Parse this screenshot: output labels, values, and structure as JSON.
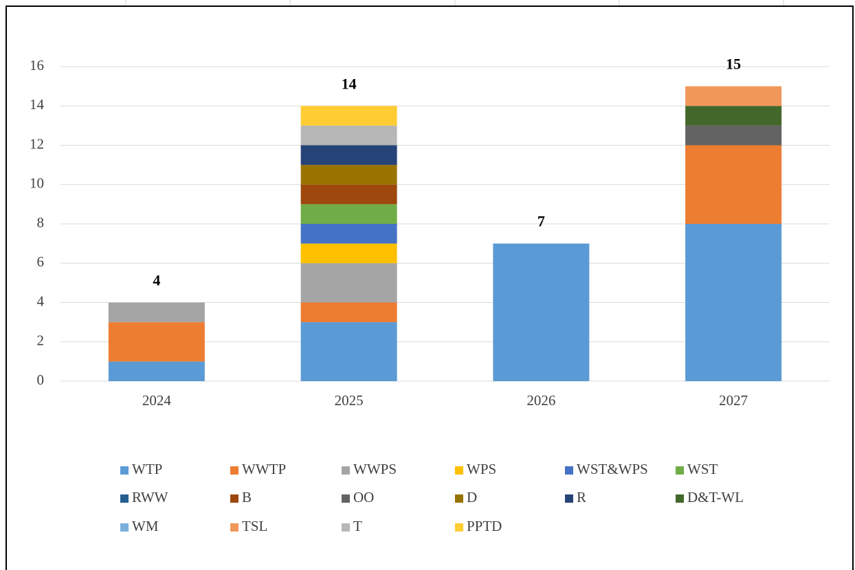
{
  "chart_data": {
    "type": "stacked_bar",
    "categories": [
      "2024",
      "2025",
      "2026",
      "2027"
    ],
    "series": [
      {
        "name": "WTP",
        "color": "#5b9bd5",
        "values": [
          1,
          3,
          7,
          8
        ]
      },
      {
        "name": "WWTP",
        "color": "#ed7d31",
        "values": [
          2,
          1,
          0,
          4
        ]
      },
      {
        "name": "WWPS",
        "color": "#a5a5a5",
        "values": [
          1,
          2,
          0,
          0
        ]
      },
      {
        "name": "WPS",
        "color": "#ffc000",
        "values": [
          0,
          1,
          0,
          0
        ]
      },
      {
        "name": "WST&WPS",
        "color": "#4472c4",
        "values": [
          0,
          1,
          0,
          0
        ]
      },
      {
        "name": "WST",
        "color": "#70ad47",
        "values": [
          0,
          1,
          0,
          0
        ]
      },
      {
        "name": "RWW",
        "color": "#255e91",
        "values": [
          0,
          0,
          0,
          0
        ]
      },
      {
        "name": "B",
        "color": "#9e480e",
        "values": [
          0,
          1,
          0,
          0
        ]
      },
      {
        "name": "OO",
        "color": "#636363",
        "values": [
          0,
          0,
          0,
          1
        ]
      },
      {
        "name": "D",
        "color": "#997300",
        "values": [
          0,
          1,
          0,
          0
        ]
      },
      {
        "name": "R",
        "color": "#264478",
        "values": [
          0,
          1,
          0,
          0
        ]
      },
      {
        "name": "D&T-WL",
        "color": "#43682b",
        "values": [
          0,
          0,
          0,
          1
        ]
      },
      {
        "name": "WM",
        "color": "#7cafdd",
        "values": [
          0,
          0,
          0,
          0
        ]
      },
      {
        "name": "TSL",
        "color": "#f1975a",
        "values": [
          0,
          0,
          0,
          1
        ]
      },
      {
        "name": "T",
        "color": "#b7b7b7",
        "values": [
          0,
          1,
          0,
          0
        ]
      },
      {
        "name": "PPTD",
        "color": "#ffcd33",
        "values": [
          0,
          1,
          0,
          0
        ]
      }
    ],
    "totals": [
      4,
      14,
      7,
      15
    ],
    "ylim": [
      0,
      16
    ],
    "yticks": [
      0,
      2,
      4,
      6,
      8,
      10,
      12,
      14,
      16
    ],
    "grid": true,
    "legend": "bottom"
  }
}
